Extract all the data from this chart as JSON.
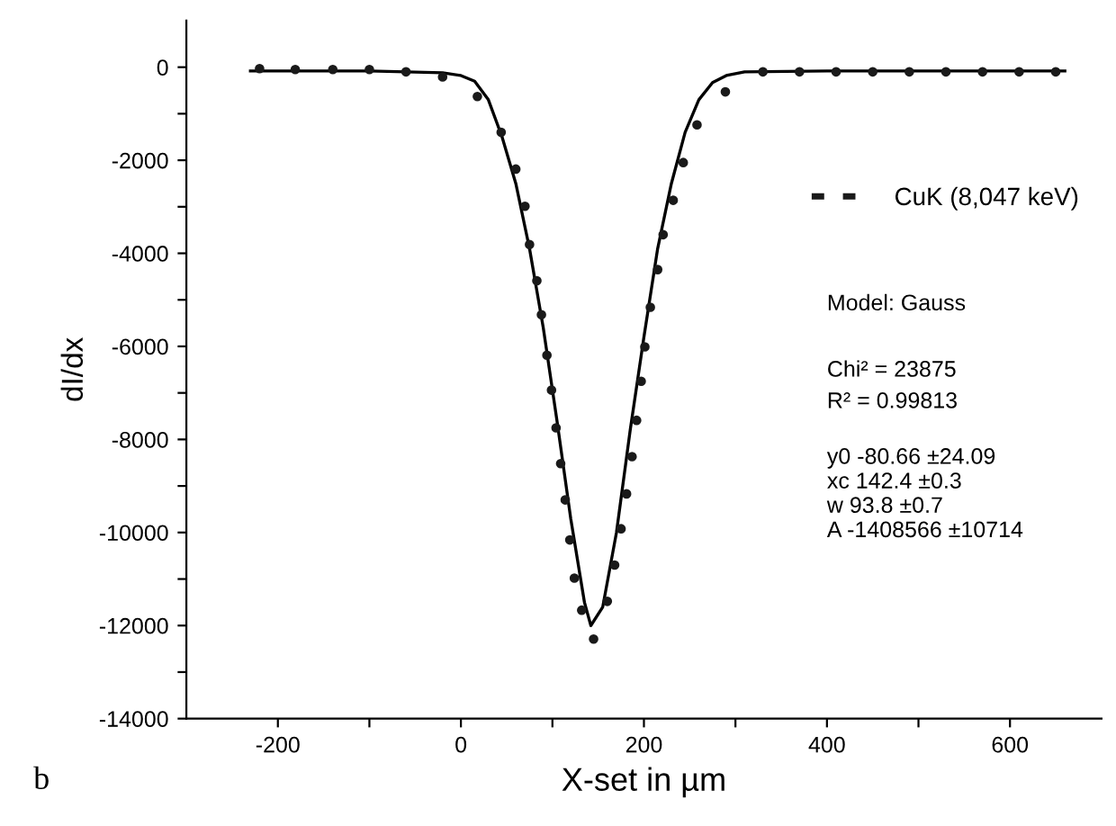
{
  "chart_data": {
    "type": "scatter",
    "xlabel": "X-set in µm",
    "ylabel": "dI/dx",
    "xlim": [
      -300,
      700
    ],
    "ylim": [
      -14000,
      1000
    ],
    "xticks": [
      -200,
      {
        "value": -100,
        "label": null
      },
      0,
      {
        "value": 100,
        "label": null
      },
      200,
      {
        "value": 300,
        "label": null
      },
      400,
      {
        "value": 500,
        "label": null
      },
      600
    ],
    "yticks": [
      0,
      {
        "value": -1000,
        "label": null
      },
      -2000,
      {
        "value": -3000,
        "label": null
      },
      -4000,
      {
        "value": -5000,
        "label": null
      },
      -6000,
      {
        "value": -7000,
        "label": null
      },
      -8000,
      {
        "value": -9000,
        "label": null
      },
      -10000,
      {
        "value": -11000,
        "label": null
      },
      -12000,
      {
        "value": -13000,
        "label": null
      },
      -14000
    ],
    "grid": false,
    "legend": "right",
    "series": [
      {
        "name": "CuK (8,047 keV)",
        "marker": "circle",
        "color": "#1a1a1a",
        "x": [
          -220,
          -181,
          -140,
          -100,
          -60,
          -20,
          18,
          44,
          60,
          70,
          75,
          83,
          88,
          94,
          99,
          104,
          109,
          114,
          119,
          124,
          132,
          145,
          160,
          168,
          175,
          181,
          187,
          192,
          197,
          201,
          207,
          215,
          221,
          232,
          243,
          258,
          289,
          330,
          370,
          410,
          450,
          490,
          530,
          570,
          610,
          650
        ],
        "values": [
          -30,
          -50,
          -50,
          -50,
          -100,
          -210,
          -630,
          -1400,
          -2190,
          -2990,
          -3810,
          -4590,
          -5320,
          -6190,
          -6940,
          -7750,
          -8520,
          -9300,
          -10160,
          -10980,
          -11670,
          -12290,
          -11480,
          -10700,
          -9920,
          -9170,
          -8370,
          -7590,
          -6750,
          -6010,
          -5160,
          -4350,
          -3600,
          -2860,
          -2050,
          -1240,
          -530,
          -100,
          -100,
          -100,
          -100,
          -100,
          -100,
          -100,
          -100,
          -100
        ]
      },
      {
        "type": "line",
        "line_style": "solid",
        "marker": "none",
        "color": "#000000",
        "x": [
          -230,
          -100,
          -20,
          0,
          15,
          30,
          45,
          60,
          75,
          90,
          105,
          120,
          135,
          142,
          155,
          170,
          185,
          200,
          215,
          230,
          245,
          260,
          275,
          290,
          310,
          400,
          660
        ],
        "values": [
          -80,
          -80,
          -120,
          -180,
          -300,
          -700,
          -1500,
          -2500,
          -3900,
          -5600,
          -7600,
          -9700,
          -11500,
          -12000,
          -11600,
          -10000,
          -7800,
          -5800,
          -3900,
          -2500,
          -1400,
          -700,
          -330,
          -180,
          -100,
          -80,
          -80
        ]
      }
    ],
    "annotations": [
      "Model: Gauss",
      "Chi² = 23875",
      "R² = 0.99813",
      "y0 -80.66 ±24.09",
      "xc 142.4 ±0.3",
      "w 93.8 ±0.7",
      "A -1408566 ±10714",
      "b"
    ]
  }
}
